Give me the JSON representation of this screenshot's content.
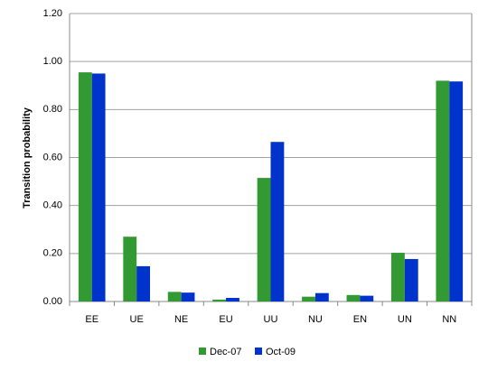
{
  "chart_data": {
    "type": "bar",
    "y_label": "Transition probability",
    "categories": [
      "EE",
      "UE",
      "NE",
      "EU",
      "UU",
      "NU",
      "EN",
      "UN",
      "NN"
    ],
    "series": [
      {
        "name": "Dec-07",
        "color": "#339933",
        "values": [
          0.955,
          0.27,
          0.04,
          0.008,
          0.515,
          0.02,
          0.027,
          0.203,
          0.92
        ]
      },
      {
        "name": "Oct-09",
        "color": "#0033cc",
        "values": [
          0.95,
          0.147,
          0.037,
          0.015,
          0.665,
          0.035,
          0.024,
          0.177,
          0.917
        ]
      }
    ],
    "ylim": [
      0,
      1.2
    ],
    "yticks": [
      {
        "value": 0,
        "label": "0.00"
      },
      {
        "value": 0.2,
        "label": "0.20"
      },
      {
        "value": 0.4,
        "label": "0.40"
      },
      {
        "value": 0.6,
        "label": "0.60"
      },
      {
        "value": 0.8,
        "label": "0.80"
      },
      {
        "value": 1.0,
        "label": "1.00"
      },
      {
        "value": 1.2,
        "label": "1.20"
      }
    ],
    "grid": true,
    "legend": "bottom"
  }
}
